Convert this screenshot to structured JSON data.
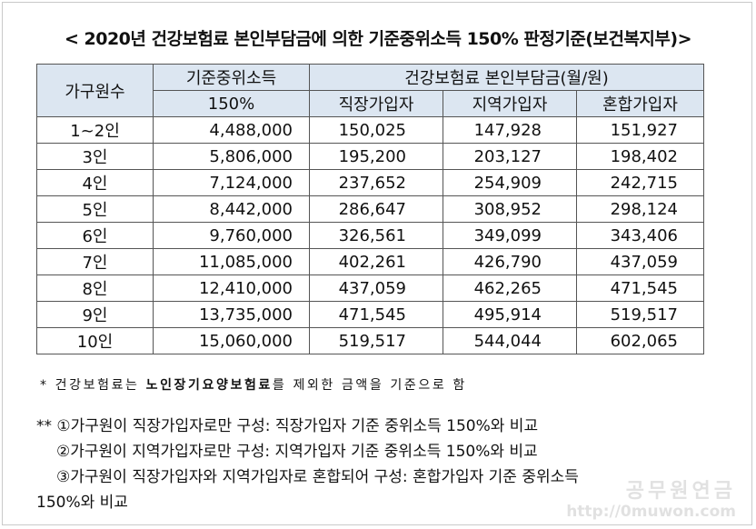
{
  "title": "< 2020년 건강보험료 본인부담금에 의한 기준중위소득 150% 판정기준(보건복지부)>",
  "table": {
    "header": {
      "household": "가구원수",
      "median_line1": "기준중위소득",
      "median_line2": "150%",
      "premium_group": "건강보험료 본인부담금(월/원)",
      "employee": "직장가입자",
      "regional": "지역가입자",
      "mixed": "혼합가입자"
    },
    "rows": [
      {
        "household": "1~2인",
        "median": "4,488,000",
        "employee": "150,025",
        "regional": "147,928",
        "mixed": "151,927"
      },
      {
        "household": "3인",
        "median": "5,806,000",
        "employee": "195,200",
        "regional": "203,127",
        "mixed": "198,402"
      },
      {
        "household": "4인",
        "median": "7,124,000",
        "employee": "237,652",
        "regional": "254,909",
        "mixed": "242,715"
      },
      {
        "household": "5인",
        "median": "8,442,000",
        "employee": "286,647",
        "regional": "308,952",
        "mixed": "298,124"
      },
      {
        "household": "6인",
        "median": "9,760,000",
        "employee": "326,561",
        "regional": "349,099",
        "mixed": "343,406"
      },
      {
        "household": "7인",
        "median": "11,085,000",
        "employee": "402,261",
        "regional": "426,790",
        "mixed": "437,059"
      },
      {
        "household": "8인",
        "median": "12,410,000",
        "employee": "437,059",
        "regional": "462,265",
        "mixed": "471,545"
      },
      {
        "household": "9인",
        "median": "13,735,000",
        "employee": "471,545",
        "regional": "495,914",
        "mixed": "519,517"
      },
      {
        "household": "10인",
        "median": "15,060,000",
        "employee": "519,517",
        "regional": "544,044",
        "mixed": "602,065"
      }
    ]
  },
  "note1": {
    "prefix": "* 건강보험료는 ",
    "bold": "노인장기요양보험료",
    "suffix": "를 제외한 금액을 기준으로 함"
  },
  "notes2": {
    "line1": "** ①가구원이 직장가입자로만 구성: 직장가입자 기준 중위소득 150%와 비교",
    "line2": "②가구원이 지역가입자로만 구성: 지역가입자 기준 중위소득 150%와 비교",
    "line3": "③가구원이 직장가입자와 지역가입자로 혼합되어 구성: 혼합가입자 기준 중위소득",
    "line4": "150%와 비교"
  },
  "watermark": {
    "logo": "공무원연금",
    "url": "http://0muwon.com"
  }
}
